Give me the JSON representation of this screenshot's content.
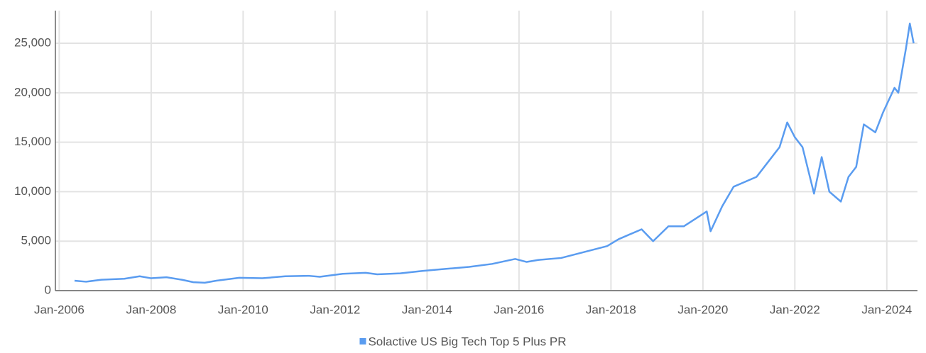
{
  "chart_data": {
    "type": "line",
    "x": [
      "2006-05",
      "2006-08",
      "2006-12",
      "2007-06",
      "2007-10",
      "2008-01",
      "2008-05",
      "2008-09",
      "2008-12",
      "2009-03",
      "2009-06",
      "2009-12",
      "2010-06",
      "2010-12",
      "2011-06",
      "2011-09",
      "2012-03",
      "2012-09",
      "2012-12",
      "2013-06",
      "2013-12",
      "2014-06",
      "2014-12",
      "2015-06",
      "2015-12",
      "2016-03",
      "2016-06",
      "2016-12",
      "2017-06",
      "2017-12",
      "2018-03",
      "2018-09",
      "2018-12",
      "2019-04",
      "2019-08",
      "2019-12",
      "2020-02",
      "2020-03",
      "2020-06",
      "2020-09",
      "2020-12",
      "2021-03",
      "2021-06",
      "2021-09",
      "2021-11",
      "2022-01",
      "2022-03",
      "2022-06",
      "2022-08",
      "2022-10",
      "2023-01",
      "2023-03",
      "2023-05",
      "2023-07",
      "2023-10",
      "2023-12",
      "2024-03",
      "2024-04",
      "2024-06",
      "2024-07",
      "2024-08"
    ],
    "series": [
      {
        "name": "Solactive US Big Tech Top 5 Plus PR",
        "color": "#5a9cf0",
        "values": [
          1000,
          900,
          1100,
          1200,
          1450,
          1250,
          1350,
          1100,
          850,
          800,
          1000,
          1300,
          1250,
          1450,
          1500,
          1400,
          1700,
          1800,
          1650,
          1750,
          2000,
          2200,
          2400,
          2700,
          3200,
          2900,
          3100,
          3300,
          3900,
          4500,
          5200,
          6200,
          5000,
          6500,
          6500,
          7500,
          8000,
          6000,
          8500,
          10500,
          11000,
          11500,
          13000,
          14500,
          17000,
          15500,
          14500,
          9800,
          13500,
          10000,
          9000,
          11500,
          12500,
          16800,
          16000,
          18000,
          20500,
          20000,
          24500,
          27000,
          25000
        ]
      }
    ],
    "xlim": [
      "2005-12",
      "2024-09"
    ],
    "xticks": [
      {
        "value": "2006-01",
        "label": "Jan-2006"
      },
      {
        "value": "2008-01",
        "label": "Jan-2008"
      },
      {
        "value": "2010-01",
        "label": "Jan-2010"
      },
      {
        "value": "2012-01",
        "label": "Jan-2012"
      },
      {
        "value": "2014-01",
        "label": "Jan-2014"
      },
      {
        "value": "2016-01",
        "label": "Jan-2016"
      },
      {
        "value": "2018-01",
        "label": "Jan-2018"
      },
      {
        "value": "2020-01",
        "label": "Jan-2020"
      },
      {
        "value": "2022-01",
        "label": "Jan-2022"
      },
      {
        "value": "2024-01",
        "label": "Jan-2024"
      }
    ],
    "ylim": [
      0,
      28300
    ],
    "yticks": [
      0,
      {
        "value": 5000,
        "label": "5,000"
      },
      {
        "value": 10000,
        "label": "10,000"
      },
      {
        "value": 15000,
        "label": "15,000"
      },
      {
        "value": 20000,
        "label": "20,000"
      },
      {
        "value": 25000,
        "label": "25,000"
      }
    ],
    "grid": true,
    "legend": "bottom"
  }
}
